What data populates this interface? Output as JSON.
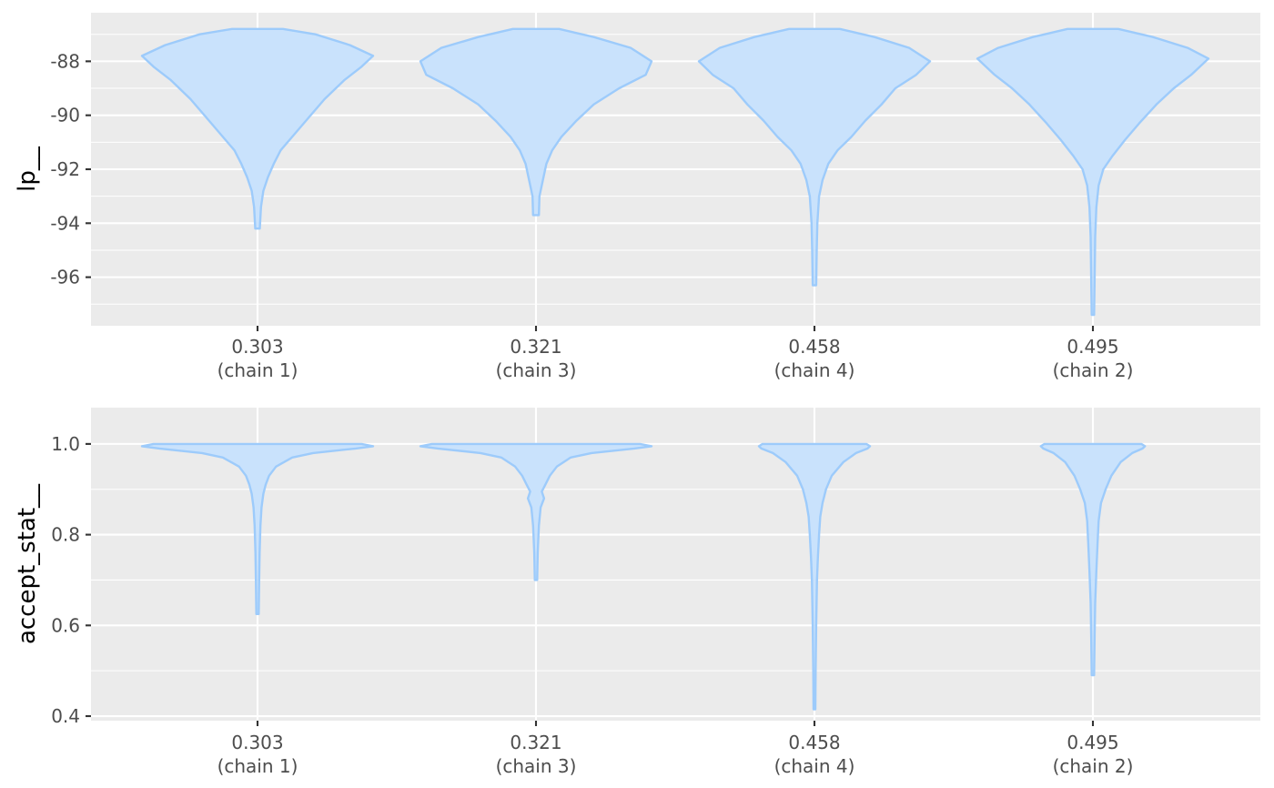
{
  "chart_data": [
    {
      "type": "violin",
      "ylabel": "lp__",
      "xlabel": "",
      "ylim": [
        -97.8,
        -86.2
      ],
      "yticks": [
        -96,
        -94,
        -92,
        -90,
        -88
      ],
      "ytick_labels": [
        "-96",
        "-94",
        "-92",
        "-90",
        "-88"
      ],
      "grid": true,
      "legend": "none",
      "fill_color": "#c9e2fc",
      "line_color": "#9dcbfb",
      "categories": [
        {
          "value": "0.303",
          "chain": "(chain 1)"
        },
        {
          "value": "0.321",
          "chain": "(chain 3)"
        },
        {
          "value": "0.458",
          "chain": "(chain 4)"
        },
        {
          "value": "0.495",
          "chain": "(chain 2)"
        }
      ],
      "violins": [
        {
          "min": -94.2,
          "max": -86.8,
          "profile": [
            [
              -86.8,
              0.22
            ],
            [
              -87.0,
              0.5
            ],
            [
              -87.4,
              0.8
            ],
            [
              -87.8,
              1.0
            ],
            [
              -88.2,
              0.9
            ],
            [
              -88.7,
              0.75
            ],
            [
              -89.4,
              0.58
            ],
            [
              -90.2,
              0.42
            ],
            [
              -90.8,
              0.3
            ],
            [
              -91.3,
              0.2
            ],
            [
              -91.8,
              0.14
            ],
            [
              -92.3,
              0.09
            ],
            [
              -92.8,
              0.05
            ],
            [
              -93.4,
              0.03
            ],
            [
              -94.2,
              0.02
            ]
          ]
        },
        {
          "min": -93.7,
          "max": -86.8,
          "profile": [
            [
              -86.8,
              0.2
            ],
            [
              -87.1,
              0.5
            ],
            [
              -87.5,
              0.82
            ],
            [
              -88.0,
              1.0
            ],
            [
              -88.5,
              0.95
            ],
            [
              -89.0,
              0.72
            ],
            [
              -89.6,
              0.5
            ],
            [
              -90.2,
              0.35
            ],
            [
              -90.8,
              0.22
            ],
            [
              -91.3,
              0.14
            ],
            [
              -91.8,
              0.09
            ],
            [
              -92.4,
              0.06
            ],
            [
              -93.0,
              0.03
            ],
            [
              -93.7,
              0.025
            ]
          ]
        },
        {
          "min": -96.3,
          "max": -86.8,
          "profile": [
            [
              -86.8,
              0.22
            ],
            [
              -87.1,
              0.52
            ],
            [
              -87.5,
              0.82
            ],
            [
              -88.0,
              1.0
            ],
            [
              -88.5,
              0.88
            ],
            [
              -89.0,
              0.7
            ],
            [
              -89.6,
              0.58
            ],
            [
              -90.2,
              0.44
            ],
            [
              -90.8,
              0.32
            ],
            [
              -91.3,
              0.2
            ],
            [
              -91.8,
              0.12
            ],
            [
              -92.4,
              0.07
            ],
            [
              -93.0,
              0.04
            ],
            [
              -94.0,
              0.025
            ],
            [
              -95.0,
              0.02
            ],
            [
              -96.3,
              0.015
            ]
          ]
        },
        {
          "min": -97.4,
          "max": -86.8,
          "profile": [
            [
              -86.8,
              0.22
            ],
            [
              -87.1,
              0.52
            ],
            [
              -87.5,
              0.82
            ],
            [
              -87.9,
              1.0
            ],
            [
              -88.5,
              0.85
            ],
            [
              -89.0,
              0.7
            ],
            [
              -89.6,
              0.55
            ],
            [
              -90.3,
              0.4
            ],
            [
              -90.9,
              0.28
            ],
            [
              -91.5,
              0.17
            ],
            [
              -92.0,
              0.09
            ],
            [
              -92.6,
              0.05
            ],
            [
              -93.4,
              0.03
            ],
            [
              -94.5,
              0.02
            ],
            [
              -96.0,
              0.015
            ],
            [
              -97.4,
              0.01
            ]
          ]
        }
      ]
    },
    {
      "type": "violin",
      "ylabel": "accept_stat__",
      "xlabel": "",
      "ylim": [
        0.39,
        1.08
      ],
      "yticks": [
        0.4,
        0.6,
        0.8,
        1.0
      ],
      "ytick_labels": [
        "0.4",
        "0.6",
        "0.8",
        "1.0"
      ],
      "grid": true,
      "legend": "none",
      "fill_color": "#c9e2fc",
      "line_color": "#9dcbfb",
      "categories": [
        {
          "value": "0.303",
          "chain": "(chain 1)"
        },
        {
          "value": "0.321",
          "chain": "(chain 3)"
        },
        {
          "value": "0.458",
          "chain": "(chain 4)"
        },
        {
          "value": "0.495",
          "chain": "(chain 2)"
        }
      ],
      "violins": [
        {
          "min": 0.625,
          "max": 1.0,
          "profile": [
            [
              1.0,
              0.9
            ],
            [
              0.995,
              1.0
            ],
            [
              0.99,
              0.85
            ],
            [
              0.98,
              0.48
            ],
            [
              0.97,
              0.3
            ],
            [
              0.95,
              0.16
            ],
            [
              0.93,
              0.1
            ],
            [
              0.91,
              0.07
            ],
            [
              0.89,
              0.05
            ],
            [
              0.86,
              0.035
            ],
            [
              0.82,
              0.025
            ],
            [
              0.76,
              0.018
            ],
            [
              0.7,
              0.014
            ],
            [
              0.625,
              0.01
            ]
          ]
        },
        {
          "min": 0.7,
          "max": 1.0,
          "profile": [
            [
              1.0,
              0.9
            ],
            [
              0.995,
              1.0
            ],
            [
              0.99,
              0.85
            ],
            [
              0.98,
              0.48
            ],
            [
              0.97,
              0.3
            ],
            [
              0.95,
              0.18
            ],
            [
              0.93,
              0.12
            ],
            [
              0.91,
              0.08
            ],
            [
              0.895,
              0.05
            ],
            [
              0.88,
              0.07
            ],
            [
              0.86,
              0.04
            ],
            [
              0.82,
              0.025
            ],
            [
              0.76,
              0.015
            ],
            [
              0.7,
              0.01
            ]
          ]
        },
        {
          "min": 0.415,
          "max": 1.0,
          "profile": [
            [
              1.0,
              0.45
            ],
            [
              0.995,
              0.48
            ],
            [
              0.99,
              0.46
            ],
            [
              0.98,
              0.36
            ],
            [
              0.96,
              0.25
            ],
            [
              0.93,
              0.15
            ],
            [
              0.9,
              0.1
            ],
            [
              0.87,
              0.07
            ],
            [
              0.84,
              0.05
            ],
            [
              0.8,
              0.04
            ],
            [
              0.75,
              0.03
            ],
            [
              0.7,
              0.022
            ],
            [
              0.6,
              0.015
            ],
            [
              0.5,
              0.01
            ],
            [
              0.415,
              0.008
            ]
          ]
        },
        {
          "min": 0.49,
          "max": 1.0,
          "profile": [
            [
              1.0,
              0.42
            ],
            [
              0.995,
              0.45
            ],
            [
              0.99,
              0.43
            ],
            [
              0.98,
              0.34
            ],
            [
              0.96,
              0.24
            ],
            [
              0.93,
              0.16
            ],
            [
              0.9,
              0.11
            ],
            [
              0.87,
              0.07
            ],
            [
              0.83,
              0.05
            ],
            [
              0.78,
              0.04
            ],
            [
              0.72,
              0.03
            ],
            [
              0.65,
              0.02
            ],
            [
              0.58,
              0.015
            ],
            [
              0.49,
              0.01
            ]
          ]
        }
      ]
    }
  ]
}
